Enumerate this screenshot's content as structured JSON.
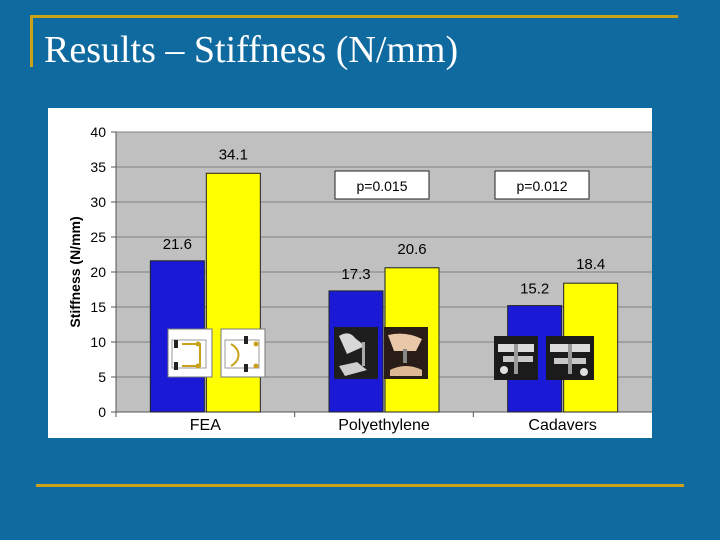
{
  "slide": {
    "title": "Results – Stiffness (N/mm)"
  },
  "colors": {
    "background": "#0f6aa0",
    "accent": "#c9a21a",
    "fea": "#1a1ad6",
    "experimental": "#ffff00",
    "plot_area": "#c0c0c0"
  },
  "chart_data": {
    "type": "bar",
    "title": "",
    "xlabel": "",
    "ylabel": "Stiffness (N/mm)",
    "ylim": [
      0,
      40
    ],
    "yticks": [
      0,
      5,
      10,
      15,
      20,
      25,
      30,
      35,
      40
    ],
    "grid": true,
    "legend": "none",
    "categories": [
      "FEA",
      "Polyethylene",
      "Cadavers"
    ],
    "series": [
      {
        "values": [
          21.6,
          17.3,
          15.2
        ],
        "labels": [
          "21.6",
          "17.3",
          "15.2"
        ],
        "color": "#1a1ad6"
      },
      {
        "values": [
          34.1,
          20.6,
          18.4
        ],
        "labels": [
          "34.1",
          "20.6",
          "18.4"
        ],
        "color": "#ffff00"
      }
    ],
    "annotations": [
      "p=0.015",
      "p=0.012"
    ],
    "photo_insets": [
      "FEA model diagrams",
      "polyethylene specimen photos",
      "cadaver specimen photos"
    ]
  }
}
